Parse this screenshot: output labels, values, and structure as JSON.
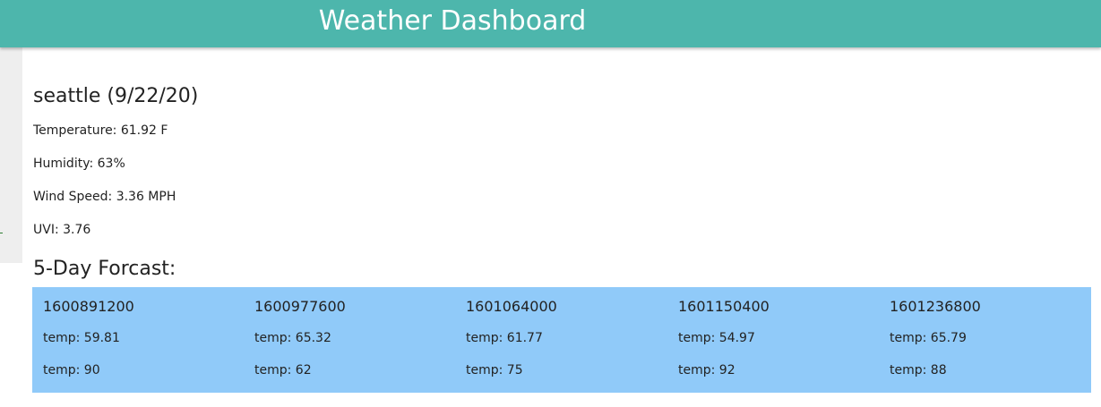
{
  "header": {
    "title": "Weather Dashboard",
    "color": "#4db6ac"
  },
  "current": {
    "heading": "seattle (9/22/20)",
    "temperature": "Temperature: 61.92 F",
    "humidity": "Humidity: 63%",
    "wind": "Wind Speed: 3.36 MPH",
    "uvi": "UVI: 3.76"
  },
  "forecast": {
    "heading": "5-Day Forcast:",
    "color": "#90caf9",
    "days": [
      {
        "date": "1600891200",
        "temp1": "temp: 59.81",
        "temp2": "temp: 90"
      },
      {
        "date": "1600977600",
        "temp1": "temp: 65.32",
        "temp2": "temp: 62"
      },
      {
        "date": "1601064000",
        "temp1": "temp: 61.77",
        "temp2": "temp: 75"
      },
      {
        "date": "1601150400",
        "temp1": "temp: 54.97",
        "temp2": "temp: 92"
      },
      {
        "date": "1601236800",
        "temp1": "temp: 65.79",
        "temp2": "temp: 88"
      }
    ]
  }
}
